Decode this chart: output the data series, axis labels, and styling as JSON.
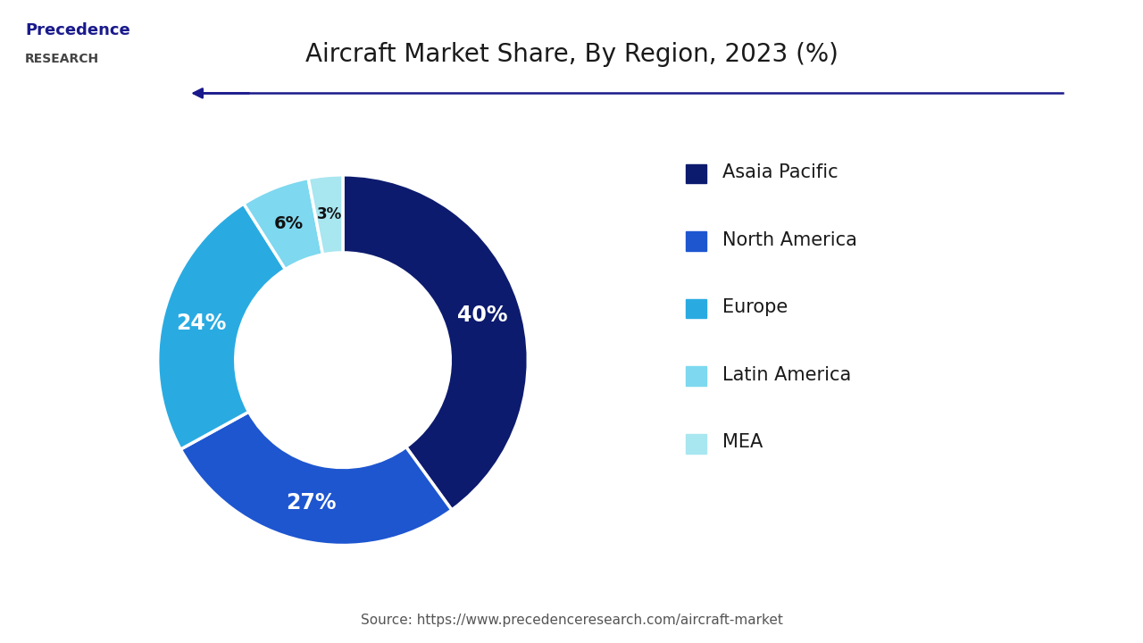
{
  "title": "Aircraft Market Share, By Region, 2023 (%)",
  "values": [
    40,
    27,
    24,
    6,
    3
  ],
  "labels": [
    "Asaia Pacific",
    "North America",
    "Europe",
    "Latin America",
    "MEA"
  ],
  "colors": [
    "#0d1b6e",
    "#1e56d0",
    "#29abe2",
    "#7dd8f0",
    "#a8e6f0"
  ],
  "pct_labels": [
    "40%",
    "27%",
    "24%",
    "6%",
    "3%"
  ],
  "source_text": "Source: https://www.precedenceresearch.com/aircraft-market",
  "background_color": "#ffffff",
  "text_color_white": "#ffffff",
  "text_color_dark": "#111111",
  "legend_fontsize": 15,
  "title_fontsize": 20,
  "source_fontsize": 11,
  "donut_width": 0.42,
  "arrow_color": "#1a1a8c",
  "logo_line1": "Precedence",
  "logo_line2": "RESEARCH"
}
